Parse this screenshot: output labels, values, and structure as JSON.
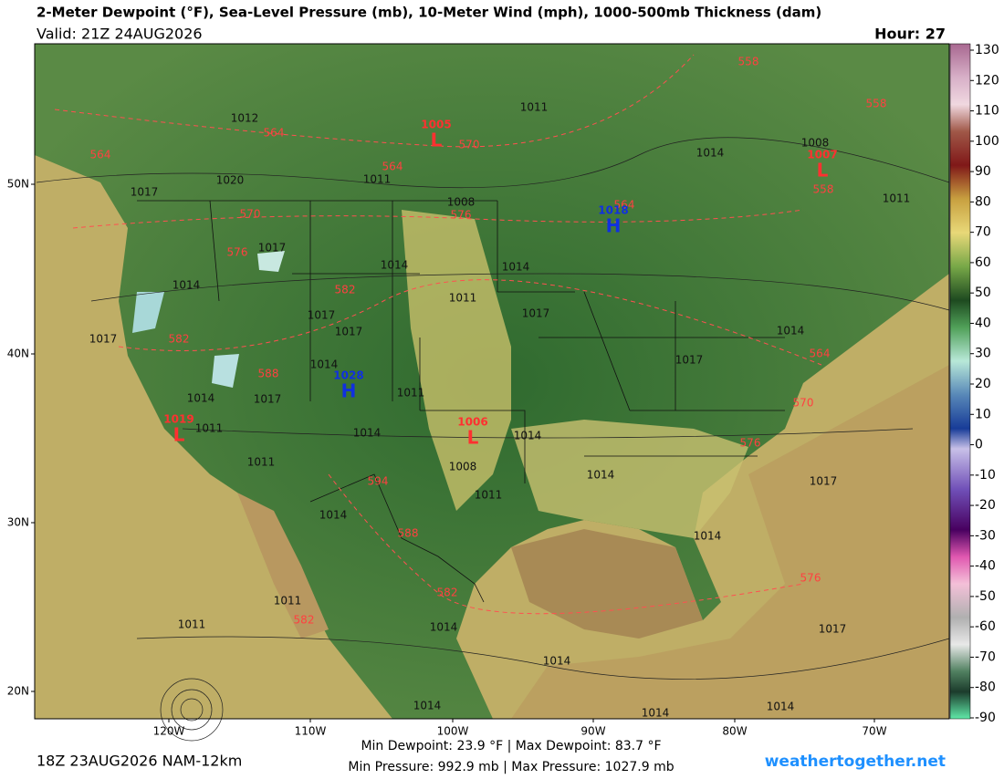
{
  "header": {
    "title": "2-Meter Dewpoint (°F), Sea-Level Pressure (mb), 10-Meter Wind (mph), 1000-500mb Thickness (dam)",
    "valid": "Valid: 21Z 24AUG2026",
    "hour": "Hour: 27"
  },
  "colorbar": {
    "lim": [
      -90,
      130
    ],
    "ticks": [
      130,
      120,
      110,
      100,
      90,
      80,
      70,
      60,
      50,
      40,
      30,
      20,
      10,
      0,
      -10,
      -20,
      -30,
      -40,
      -50,
      -60,
      -70,
      -80,
      -90
    ]
  },
  "axes": {
    "latitudes": [
      "50N",
      "40N",
      "30N",
      "20N"
    ],
    "longitudes": [
      "120W",
      "110W",
      "100W",
      "90W",
      "80W",
      "70W"
    ]
  },
  "map": {
    "isobar_labels": [
      "1012",
      "1020",
      "1017",
      "1011",
      "1008",
      "1011",
      "1014",
      "1008",
      "1017",
      "1014",
      "1014",
      "1014",
      "1011",
      "1017",
      "1017",
      "1017",
      "1014",
      "1011",
      "1017",
      "1014",
      "1011",
      "1014",
      "1014",
      "1011",
      "1008",
      "1011",
      "1014",
      "1017",
      "1014",
      "1017",
      "1014",
      "1014",
      "1011",
      "1011",
      "1014",
      "1014",
      "1017",
      "1014",
      "1014",
      "1014",
      "1017",
      "1011"
    ],
    "thickness_labels": [
      "564",
      "564",
      "564",
      "570",
      "570",
      "576",
      "564",
      "576",
      "582",
      "582",
      "588",
      "594",
      "588",
      "582",
      "582",
      "576",
      "570",
      "564",
      "576",
      "558",
      "558",
      "558"
    ],
    "lows": [
      {
        "symbol": "L",
        "pressure": "1005"
      },
      {
        "symbol": "L",
        "pressure": "1007"
      },
      {
        "symbol": "L",
        "pressure": "1019"
      },
      {
        "symbol": "L",
        "pressure": "1006"
      }
    ],
    "highs": [
      {
        "symbol": "H",
        "pressure": "1018"
      },
      {
        "symbol": "H",
        "pressure": "1028"
      }
    ]
  },
  "footer": {
    "run": "18Z 23AUG2026 NAM-12km",
    "dewpoint_range": "Min Dewpoint:  23.9 °F | Max Dewpoint:  83.7 °F",
    "pressure_range": "Min Pressure: 992.9 mb | Max Pressure: 1027.9 mb",
    "site": "weathertogether.net"
  }
}
